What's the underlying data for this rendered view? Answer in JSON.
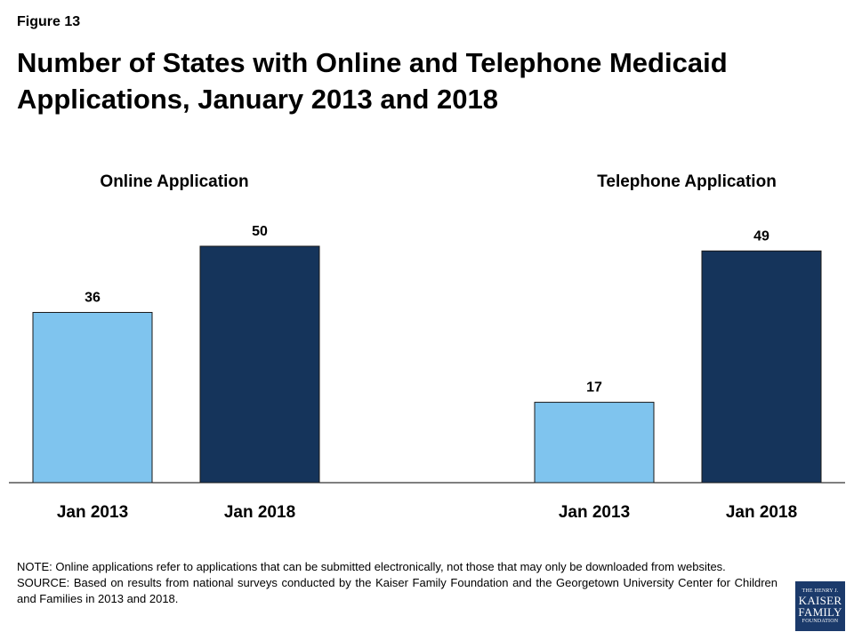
{
  "figure_label": "Figure 13",
  "title": "Number of States with Online and Telephone Medicaid Applications, January 2013 and 2018",
  "chart_data": {
    "type": "bar",
    "ylim": [
      0,
      50
    ],
    "grid": false,
    "colors": {
      "Jan 2013": "#7fc4ee",
      "Jan 2018": "#15345b"
    },
    "groups": [
      {
        "title": "Online Application",
        "categories": [
          "Jan 2013",
          "Jan 2018"
        ],
        "values": [
          36,
          50
        ]
      },
      {
        "title": "Telephone Application",
        "categories": [
          "Jan 2013",
          "Jan 2018"
        ],
        "values": [
          17,
          49
        ]
      }
    ]
  },
  "notes": {
    "note": "NOTE: Online applications refer to applications that can be submitted electronically, not those that may only be downloaded from websites.",
    "source": "SOURCE: Based on results from national surveys conducted by the Kaiser Family Foundation and the Georgetown University Center for Children and Families in 2013 and 2018."
  },
  "logo": {
    "line1": "THE HENRY J.",
    "line2": "KAISER",
    "line3": "FAMILY",
    "line4": "FOUNDATION"
  }
}
